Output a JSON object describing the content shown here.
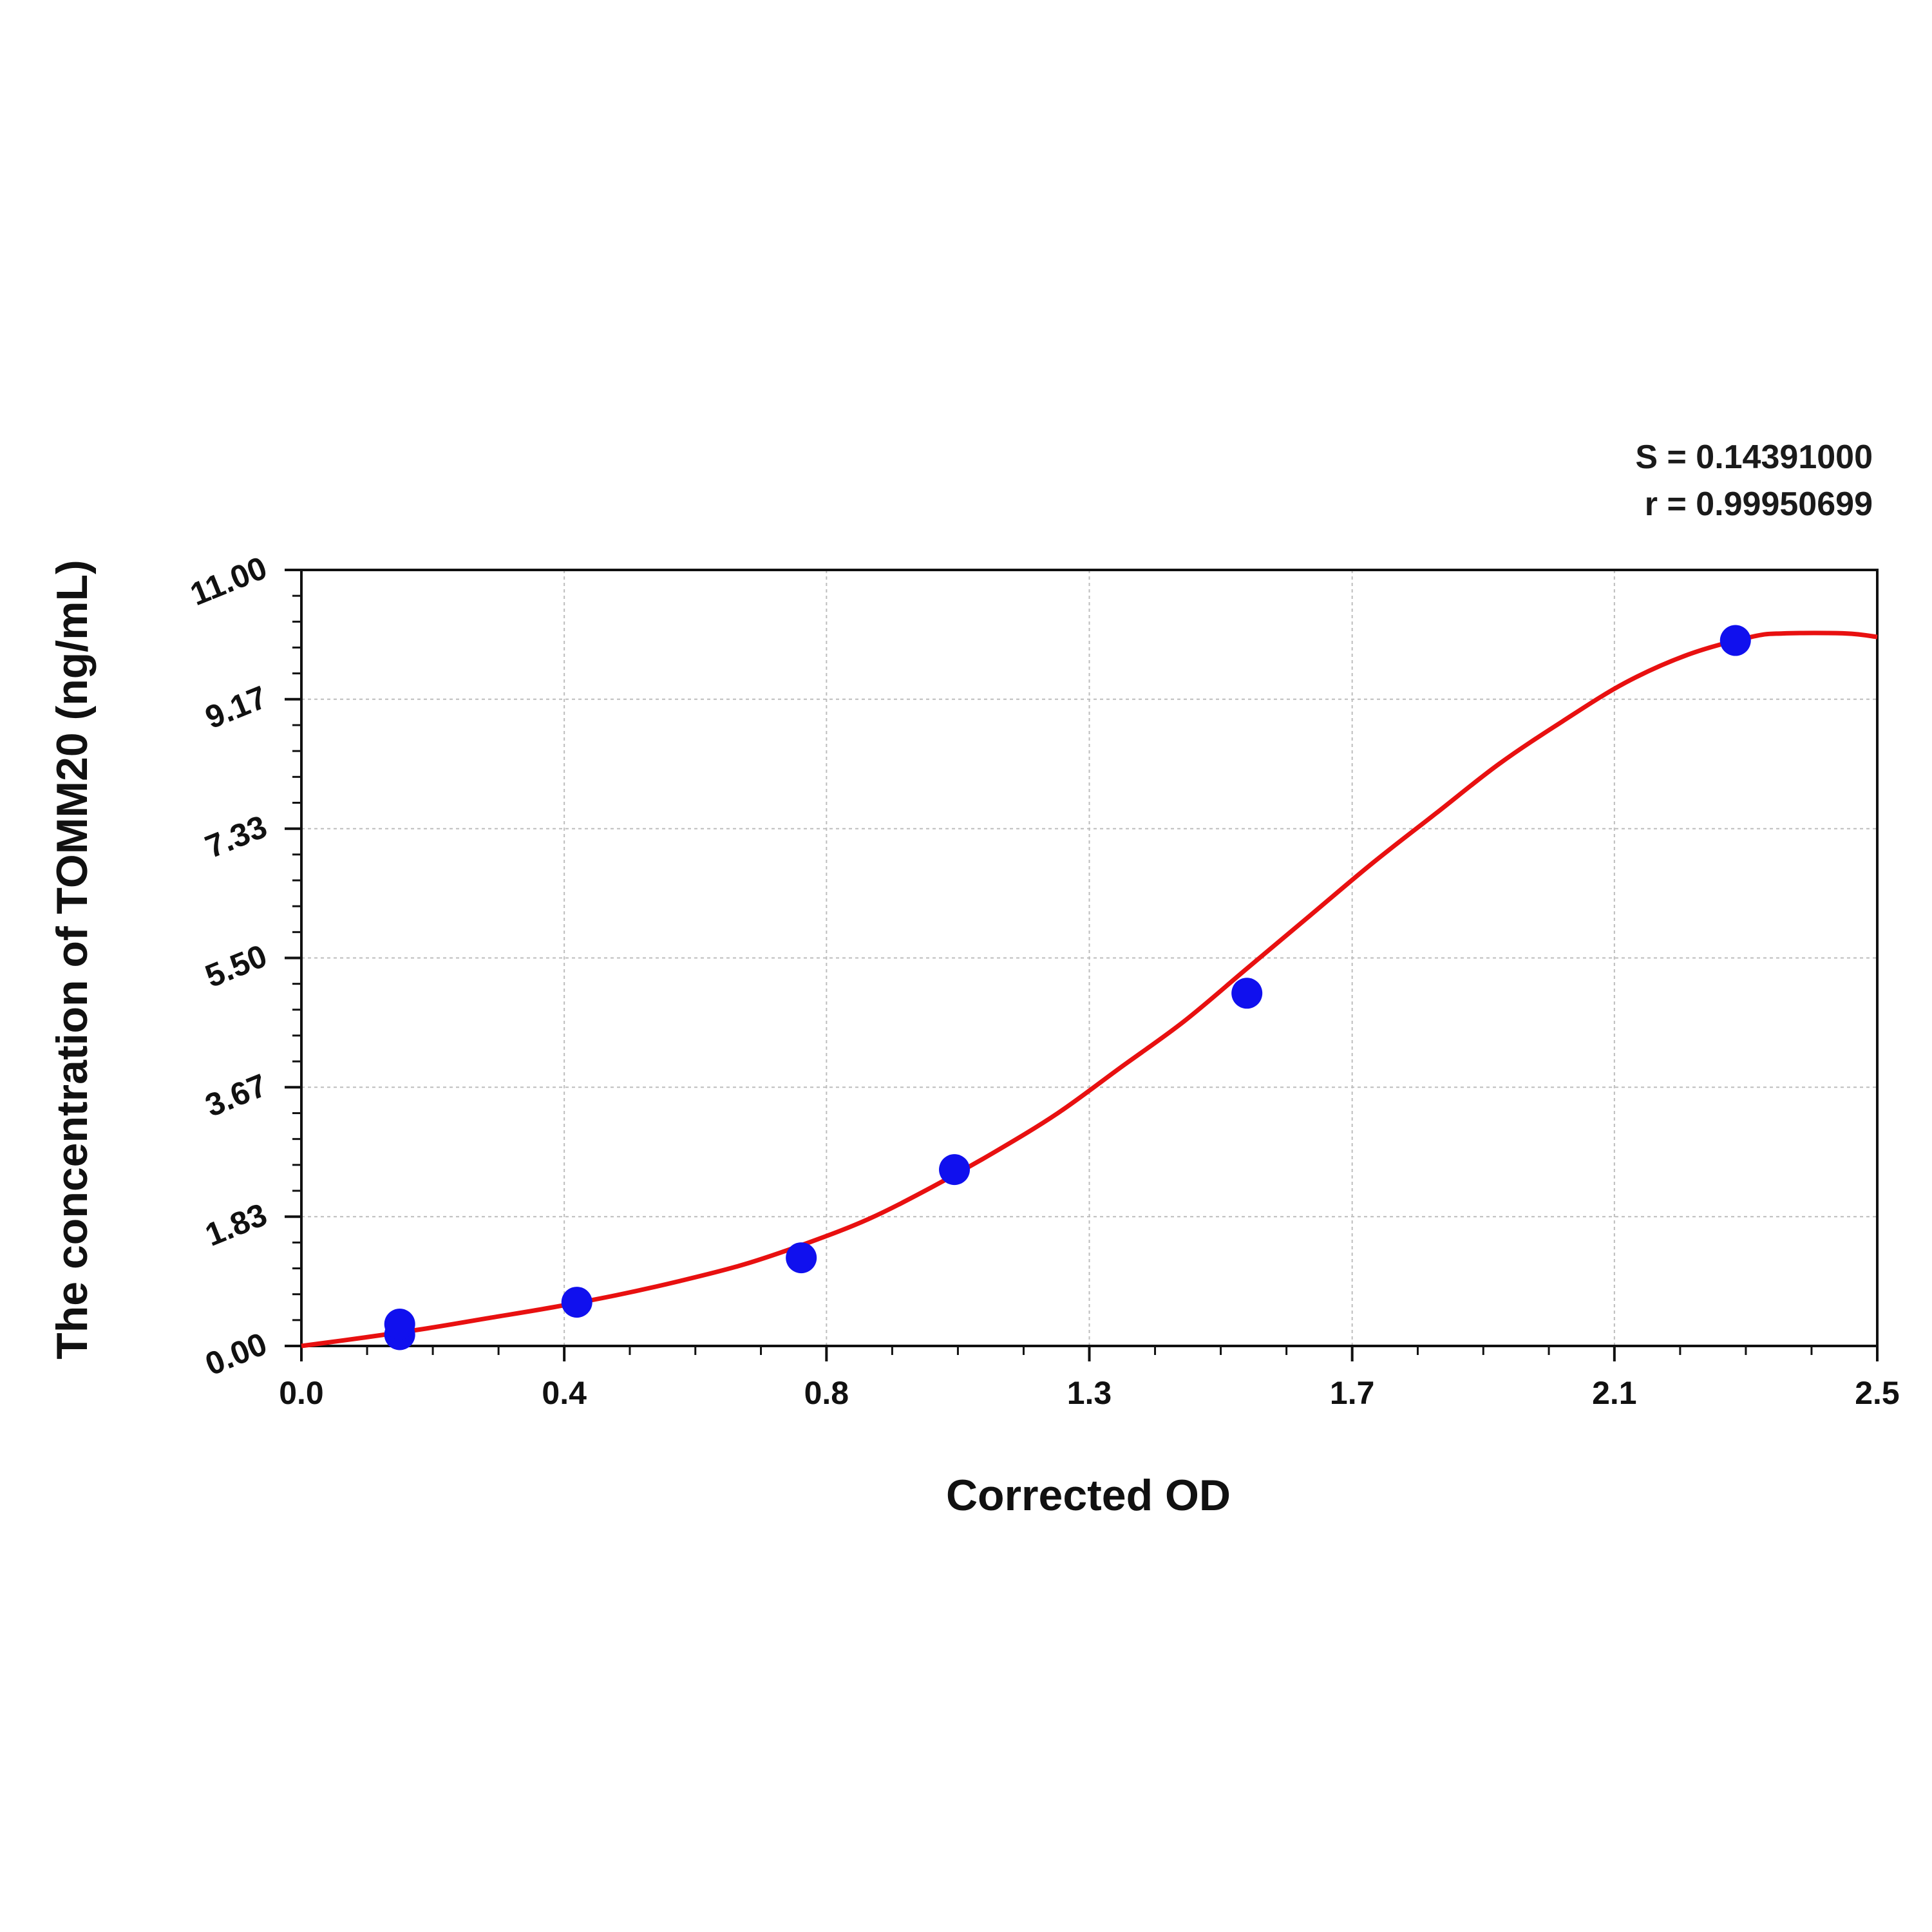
{
  "chart_data": {
    "type": "scatter",
    "xlabel": "Corrected OD",
    "ylabel": "The concentration of TOMM20 (ng/mL)",
    "xlim": [
      0.0,
      2.5
    ],
    "ylim": [
      0.0,
      11.0
    ],
    "x_ticks": [
      "0.0",
      "0.4",
      "0.8",
      "1.3",
      "1.7",
      "2.1",
      "2.5"
    ],
    "x_tick_values": [
      0.0,
      0.417,
      0.833,
      1.25,
      1.667,
      2.083,
      2.5
    ],
    "y_ticks": [
      "0.00",
      "1.83",
      "3.67",
      "5.50",
      "7.33",
      "9.17",
      "11.00"
    ],
    "y_tick_values": [
      0.0,
      1.833,
      3.667,
      5.5,
      7.333,
      9.167,
      11.0
    ],
    "grid": true,
    "stats": [
      "S = 0.14391000",
      "r = 0.99950699"
    ],
    "series": [
      {
        "kind": "points",
        "color": "#1010ee",
        "points": [
          {
            "x": 0.156,
            "y": 0.16
          },
          {
            "x": 0.156,
            "y": 0.31
          },
          {
            "x": 0.437,
            "y": 0.62
          },
          {
            "x": 0.793,
            "y": 1.25
          },
          {
            "x": 1.036,
            "y": 2.5
          },
          {
            "x": 1.5,
            "y": 5.0
          },
          {
            "x": 2.275,
            "y": 10.0
          }
        ]
      },
      {
        "kind": "curve",
        "color": "#e81010",
        "points": [
          {
            "x": 0.0,
            "y": 0.0
          },
          {
            "x": 0.1,
            "y": 0.12
          },
          {
            "x": 0.2,
            "y": 0.25
          },
          {
            "x": 0.3,
            "y": 0.4
          },
          {
            "x": 0.4,
            "y": 0.55
          },
          {
            "x": 0.5,
            "y": 0.72
          },
          {
            "x": 0.6,
            "y": 0.92
          },
          {
            "x": 0.7,
            "y": 1.15
          },
          {
            "x": 0.8,
            "y": 1.45
          },
          {
            "x": 0.9,
            "y": 1.8
          },
          {
            "x": 1.0,
            "y": 2.25
          },
          {
            "x": 1.1,
            "y": 2.75
          },
          {
            "x": 1.2,
            "y": 3.3
          },
          {
            "x": 1.3,
            "y": 3.95
          },
          {
            "x": 1.4,
            "y": 4.6
          },
          {
            "x": 1.5,
            "y": 5.35
          },
          {
            "x": 1.6,
            "y": 6.1
          },
          {
            "x": 1.7,
            "y": 6.85
          },
          {
            "x": 1.8,
            "y": 7.55
          },
          {
            "x": 1.9,
            "y": 8.25
          },
          {
            "x": 2.0,
            "y": 8.85
          },
          {
            "x": 2.1,
            "y": 9.4
          },
          {
            "x": 2.2,
            "y": 9.8
          },
          {
            "x": 2.3,
            "y": 10.05
          },
          {
            "x": 2.35,
            "y": 10.1
          },
          {
            "x": 2.45,
            "y": 10.1
          },
          {
            "x": 2.5,
            "y": 10.05
          }
        ]
      }
    ]
  }
}
